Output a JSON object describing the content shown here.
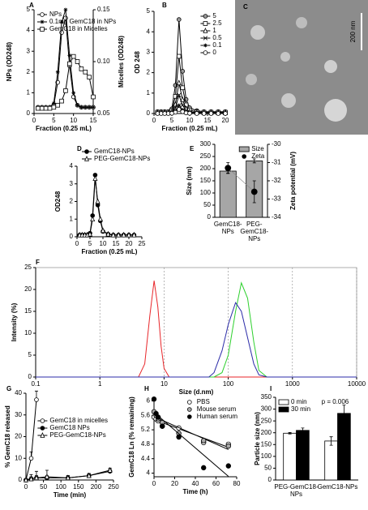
{
  "chart_data": [
    {
      "type": "line",
      "panel": "A",
      "xlabel": "Fraction (0.25 mL)",
      "ylabel": "NPs (OD248)",
      "y2label": "Micelles (OD248)",
      "x": [
        1,
        2,
        3,
        4,
        5,
        6,
        7,
        8,
        9,
        10,
        11,
        12,
        13,
        14,
        15
      ],
      "xlim": [
        0,
        15
      ],
      "xticks": [
        0,
        5,
        10,
        15
      ],
      "ylim": [
        0,
        5
      ],
      "yticks": [
        0,
        1,
        2,
        3,
        4,
        5
      ],
      "y2lim": [
        0.05,
        0.15
      ],
      "y2ticks": [
        {
          "value": 0.05,
          "label": "0.05"
        },
        {
          "value": 0.1,
          "label": "0.10"
        },
        {
          "value": 0.15,
          "label": "0.15"
        }
      ],
      "legend": "upper left",
      "series": [
        {
          "name": "NPs",
          "color": "#000",
          "marker": "circle",
          "marker_fill": "#fff",
          "values": [
            0.3,
            0.3,
            0.3,
            0.3,
            0.4,
            1.5,
            3.9,
            4.6,
            2.3,
            0.8,
            0.4,
            0.3,
            0.3,
            0.3,
            0.3
          ]
        },
        {
          "name": "0.1mg GemC18 in NPs",
          "color": "#000",
          "marker": "star",
          "marker_fill": "#000",
          "values": [
            0.3,
            0.3,
            0.3,
            0.3,
            0.5,
            2.0,
            4.4,
            5.0,
            2.8,
            1.0,
            0.4,
            0.3,
            0.3,
            0.3,
            0.3
          ]
        },
        {
          "name": "GemC18 in Micelles",
          "color": "#000",
          "marker": "square",
          "marker_fill": "#fff",
          "axis": "y2",
          "values": [
            0.055,
            0.055,
            0.055,
            0.055,
            0.056,
            0.058,
            0.062,
            0.072,
            0.098,
            0.105,
            0.1,
            0.093,
            0.09,
            0.085,
            0.066
          ]
        }
      ]
    },
    {
      "type": "line",
      "panel": "B",
      "xlabel": "Fraction (0.25 mL)",
      "ylabel": "OD 248",
      "x": [
        1,
        2,
        3,
        4,
        5,
        6,
        7,
        8,
        9,
        10,
        12,
        14,
        16,
        18,
        20
      ],
      "xlim": [
        0,
        20
      ],
      "xticks": [
        0,
        5,
        10,
        15,
        20
      ],
      "ylim": [
        0,
        5
      ],
      "yticks": [
        0,
        1,
        2,
        3,
        4,
        5
      ],
      "legend": "upper right",
      "series": [
        {
          "name": "5",
          "color": "#000",
          "marker": "circle",
          "marker_fill": "#999",
          "values": [
            0.09,
            0.09,
            0.09,
            0.09,
            0.23,
            1.38,
            4.6,
            2.07,
            0.69,
            0.28,
            0.14,
            0.09,
            0.09,
            0.09,
            0.09
          ]
        },
        {
          "name": "2.5",
          "color": "#000",
          "marker": "square",
          "marker_fill": "#fff",
          "values": [
            0.06,
            0.06,
            0.06,
            0.06,
            0.14,
            0.84,
            2.8,
            1.26,
            0.42,
            0.17,
            0.08,
            0.06,
            0.06,
            0.06,
            0.06
          ]
        },
        {
          "name": "1",
          "color": "#000",
          "marker": "triangle",
          "marker_fill": "#fff",
          "values": [
            0.03,
            0.03,
            0.03,
            0.03,
            0.08,
            0.45,
            1.5,
            0.68,
            0.23,
            0.09,
            0.05,
            0.03,
            0.03,
            0.03,
            0.03
          ]
        },
        {
          "name": "0.5",
          "color": "#000",
          "marker": "x",
          "marker_fill": "none",
          "values": [
            0.02,
            0.02,
            0.02,
            0.02,
            0.05,
            0.27,
            0.9,
            0.41,
            0.14,
            0.05,
            0.03,
            0.02,
            0.02,
            0.02,
            0.02
          ]
        },
        {
          "name": "0.1",
          "color": "#000",
          "marker": "star",
          "marker_fill": "none",
          "values": [
            0.01,
            0.01,
            0.01,
            0.01,
            0.02,
            0.12,
            0.4,
            0.18,
            0.06,
            0.02,
            0.01,
            0.01,
            0.01,
            0.01,
            0.01
          ]
        },
        {
          "name": "0",
          "color": "#000",
          "marker": "circle",
          "marker_fill": "#fff",
          "values": [
            0,
            0,
            0,
            0,
            0.01,
            0.06,
            0.2,
            0.09,
            0.03,
            0.01,
            0,
            0,
            0,
            0,
            0
          ]
        }
      ]
    },
    {
      "type": "line",
      "panel": "D",
      "xlabel": "Fraction (0.25 mL)",
      "ylabel": "OD248",
      "x": [
        1,
        2,
        3,
        4,
        5,
        6,
        7,
        8,
        9,
        10,
        12,
        14,
        16,
        18,
        20,
        22
      ],
      "xlim": [
        0,
        25
      ],
      "xticks": [
        0,
        5,
        10,
        15,
        20,
        25
      ],
      "ylim": [
        0,
        4
      ],
      "yticks": [
        0,
        1,
        2,
        3,
        4
      ],
      "legend": "top",
      "series": [
        {
          "name": "GemC18-NPs",
          "color": "#000",
          "marker": "circle",
          "marker_fill": "#000",
          "values": [
            0.1,
            0.1,
            0.1,
            0.1,
            0.2,
            1.2,
            3.5,
            1.8,
            0.9,
            0.3,
            0.15,
            0.1,
            0.1,
            0.1,
            0.1,
            0.1
          ]
        },
        {
          "name": "PEG-GemC18-NPs",
          "color": "#000",
          "marker": "triangle",
          "marker_fill": "#fff",
          "values": [
            0.1,
            0.1,
            0.1,
            0.1,
            0.15,
            1.0,
            3.3,
            2.0,
            1.0,
            0.35,
            0.15,
            0.1,
            0.1,
            0.1,
            0.1,
            0.1
          ]
        }
      ]
    },
    {
      "type": "bar",
      "panel": "E",
      "ylabel": "Size (nm)",
      "y2label": "Zeta potential (mV)",
      "categories": [
        "GemC18-NPs",
        "PEG-GemC18-NPs"
      ],
      "ylim": [
        0,
        300
      ],
      "yticks": [
        0,
        50,
        100,
        150,
        200,
        250,
        300
      ],
      "y2lim": [
        -34,
        -30
      ],
      "y2ticks": [
        -34,
        -33,
        -32,
        -31,
        -30
      ],
      "legend": "upper right",
      "series": [
        {
          "name": "Size",
          "color": "#a6a6a6",
          "values": [
            190,
            232
          ],
          "errors": [
            8,
            8
          ]
        },
        {
          "name": "Zeta",
          "color": "#000",
          "marker": "circle",
          "marker_fill": "#000",
          "axis": "y2",
          "values": [
            -31.3,
            -32.6
          ],
          "errors": [
            0.3,
            0.6
          ]
        }
      ]
    },
    {
      "type": "line",
      "panel": "F",
      "xlabel": "Size (d.nm)",
      "ylabel": "Intensity (%)",
      "x": [
        0.1,
        4,
        5,
        6,
        7,
        8,
        9,
        10,
        12,
        50,
        60,
        80,
        100,
        130,
        160,
        200,
        250,
        300,
        400,
        10000
      ],
      "xlim": [
        0.1,
        10000
      ],
      "xlog": true,
      "xticks": [
        0.1,
        1,
        10,
        100,
        1000,
        10000
      ],
      "ylim": [
        0,
        25
      ],
      "yticks": [
        0,
        5,
        10,
        15,
        20,
        25
      ],
      "grid": "x",
      "frame": true,
      "series": [
        {
          "color": "#e8262a",
          "values": [
            0,
            0,
            3,
            14,
            22,
            16,
            7,
            2,
            0,
            0,
            0,
            0,
            0,
            0,
            0,
            0,
            0,
            0,
            0,
            0
          ]
        },
        {
          "color": "#2ed02e",
          "values": [
            0,
            0,
            0,
            0,
            0,
            0,
            0,
            0,
            0,
            0,
            0,
            1,
            5,
            15,
            21.5,
            18,
            8,
            1.5,
            0,
            0
          ]
        },
        {
          "color": "#2b2ba8",
          "values": [
            0,
            0,
            0,
            0,
            0,
            0,
            0,
            0,
            0,
            0,
            1,
            6,
            12,
            17,
            15,
            9,
            3,
            0.5,
            0,
            0
          ]
        }
      ]
    },
    {
      "type": "line",
      "panel": "G",
      "xlabel": "Time (min)",
      "ylabel": "% GemC18 released",
      "x": [
        0,
        15,
        30,
        60,
        120,
        180,
        240
      ],
      "xlim": [
        0,
        250
      ],
      "xticks": [
        0,
        50,
        100,
        150,
        200,
        250
      ],
      "ylim": [
        0,
        40
      ],
      "yticks": [
        0,
        10,
        20,
        30,
        40
      ],
      "legend": "center right",
      "series": [
        {
          "name": "GemC18 in micelles",
          "color": "#000",
          "marker": "circle",
          "marker_fill": "#fff",
          "values": [
            0,
            10,
            37,
            null,
            null,
            null,
            null
          ],
          "errors": [
            null,
            3,
            4,
            null,
            null,
            null,
            null
          ]
        },
        {
          "name": "GemC18 NPs",
          "color": "#000",
          "marker": "circle",
          "marker_fill": "#000",
          "values": [
            0,
            0.5,
            1,
            1,
            1,
            2,
            4
          ],
          "errors": [
            null,
            1,
            1,
            1,
            1,
            1,
            1
          ]
        },
        {
          "name": "PEG-GemC18-NPs",
          "color": "#000",
          "marker": "triangle",
          "marker_fill": "#fff",
          "values": [
            0,
            0.5,
            1,
            1.5,
            1,
            2,
            4.5
          ],
          "errors": [
            null,
            2,
            3,
            3,
            1,
            1,
            1
          ]
        }
      ]
    },
    {
      "type": "scatter",
      "panel": "H",
      "xlabel": "Time (h)",
      "ylabel": "GemC18 Ln (% remaining)",
      "x": [
        0,
        2,
        4,
        8,
        24,
        48,
        72
      ],
      "xlim": [
        0,
        80
      ],
      "xticks": [
        0,
        20,
        40,
        60,
        80
      ],
      "ylim": [
        3.9,
        6.1
      ],
      "yticks": [
        4,
        4.4,
        4.8,
        5.2,
        5.6,
        6
      ],
      "legend": "upper right",
      "trend": true,
      "series": [
        {
          "name": "PBS",
          "color": "#000",
          "marker": "circle",
          "marker_fill": "#fff",
          "values": [
            5.55,
            5.5,
            5.45,
            5.3,
            5.25,
            4.85,
            4.8
          ]
        },
        {
          "name": "Mouse serum",
          "color": "#000",
          "marker": "circle",
          "marker_fill": "#aaa",
          "values": [
            5.7,
            5.6,
            5.5,
            5.4,
            5.1,
            4.9,
            4.75
          ]
        },
        {
          "name": "Human serum",
          "color": "#000",
          "marker": "circle",
          "marker_fill": "#000",
          "values": [
            6.05,
            5.65,
            5.55,
            5.3,
            5.0,
            4.15,
            4.2
          ]
        }
      ]
    },
    {
      "type": "bar",
      "panel": "I",
      "ylabel": "Particle size (nm)",
      "annotation": "p = 0.006",
      "categories": [
        "PEG-GemC18-NPs",
        "GemC18-NPs"
      ],
      "ylim": [
        0,
        350
      ],
      "yticks": [
        0,
        50,
        100,
        150,
        200,
        250,
        300,
        350
      ],
      "legend": "upper left",
      "series": [
        {
          "name": "0 min",
          "color": "#fff",
          "values": [
            198,
            165
          ],
          "errors": [
            3,
            18
          ]
        },
        {
          "name": "30 min",
          "color": "#000",
          "values": [
            210,
            282
          ],
          "errors": [
            10,
            35
          ]
        }
      ]
    }
  ],
  "image": {
    "panel": "C",
    "scale_label": "200 nm"
  }
}
